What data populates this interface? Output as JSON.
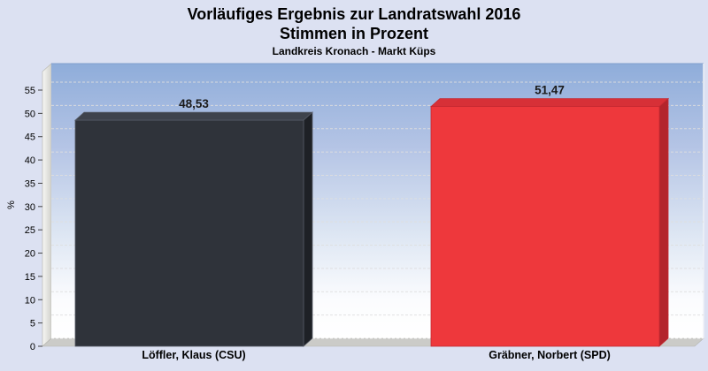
{
  "colors": {
    "background": "#dce1f2",
    "plot_gradient_top": "#8fadda",
    "plot_gradient_bottom": "#ffffff",
    "floor": "#cbcbc8",
    "wall": "#e6e6e1",
    "csu_bar": "#2f333a",
    "spd_bar": "#ee383c"
  },
  "chart_data": {
    "type": "bar",
    "projection": "3d",
    "title": "Vorläufiges Ergebnis zur Landratswahl 2016",
    "subtitle": "Stimmen in Prozent",
    "annotation": "Landkreis Kronach - Markt Küps",
    "ylabel": "%",
    "y_axis": {
      "min": 0,
      "max": 59,
      "tick_step": 5,
      "tick_max": 55
    },
    "grid": "dashed-horizontal",
    "legend": "none",
    "categories": [
      "Löffler, Klaus (CSU)",
      "Gräbner, Norbert (SPD)"
    ],
    "values": [
      48.53,
      51.47
    ],
    "bars": [
      {
        "category": "Löffler, Klaus (CSU)",
        "value": 48.53,
        "value_display": "48,53",
        "color": "#2f333a",
        "top_color": "#3e434c",
        "side_color": "#1e2126",
        "edge_color": "#565b66"
      },
      {
        "category": "Gräbner, Norbert (SPD)",
        "value": 51.47,
        "value_display": "51,47",
        "color": "#ee383c",
        "top_color": "#d73037",
        "side_color": "#b3252c",
        "edge_color": "#c62931"
      }
    ]
  }
}
